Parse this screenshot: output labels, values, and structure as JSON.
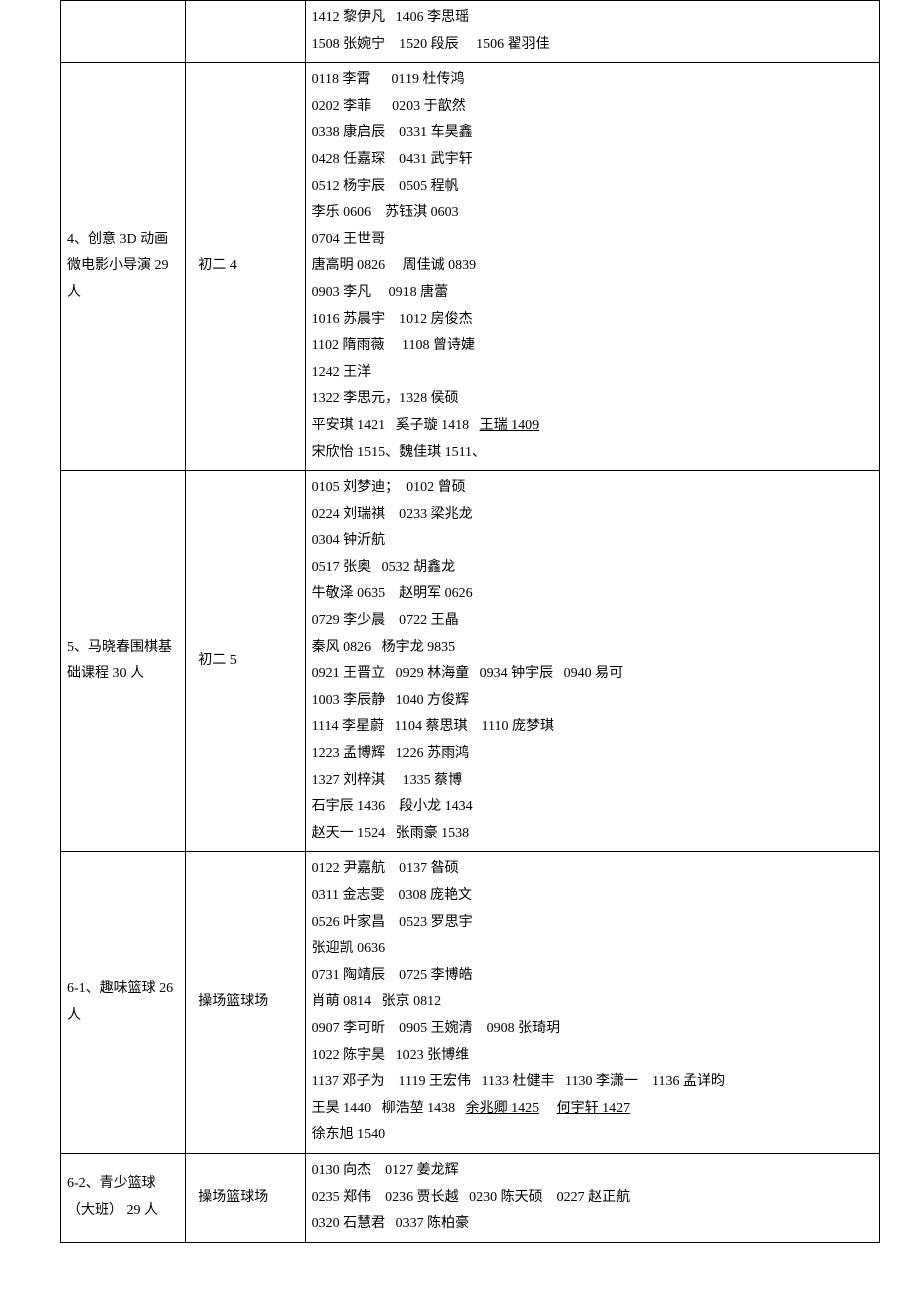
{
  "rows": [
    {
      "col1": "",
      "col2": "",
      "col3_lines": [
        {
          "segs": [
            {
              "t": "1412 黎伊凡   1406 李思瑶"
            }
          ]
        },
        {
          "segs": [
            {
              "t": "1508 张婉宁    1520 段辰     1506 翟羽佳"
            }
          ]
        }
      ]
    },
    {
      "col1": "4、创意 3D 动画微电影小导演   29 人",
      "col2": "初二 4",
      "col3_lines": [
        {
          "segs": [
            {
              "t": "0118 李霄      0119 杜传鸿"
            }
          ]
        },
        {
          "segs": [
            {
              "t": "0202 李菲      0203 于歆然"
            }
          ]
        },
        {
          "segs": [
            {
              "t": "0338 康启辰    0331 车昊鑫"
            }
          ]
        },
        {
          "segs": [
            {
              "t": "0428 任嘉琛    0431 武宇轩"
            }
          ]
        },
        {
          "segs": [
            {
              "t": "0512 杨宇辰    0505 程帆"
            }
          ]
        },
        {
          "segs": [
            {
              "t": "李乐 0606    苏钰淇 0603"
            }
          ]
        },
        {
          "segs": [
            {
              "t": "0704 王世哥"
            }
          ]
        },
        {
          "segs": [
            {
              "t": "唐高明 0826     周佳诚 0839"
            }
          ]
        },
        {
          "segs": [
            {
              "t": "0903 李凡     0918 唐蕾"
            }
          ]
        },
        {
          "segs": [
            {
              "t": "1016 苏晨宇    1012 房俊杰"
            }
          ]
        },
        {
          "segs": [
            {
              "t": "1102 隋雨薇     1108 曾诗婕"
            }
          ]
        },
        {
          "segs": [
            {
              "t": "1242 王洋"
            }
          ]
        },
        {
          "segs": [
            {
              "t": "1322 李思元，1328 侯硕"
            }
          ]
        },
        {
          "segs": [
            {
              "t": "平安琪 1421   奚子璇 1418   "
            },
            {
              "t": "王瑞 1409",
              "u": true
            }
          ]
        },
        {
          "segs": [
            {
              "t": "宋欣怡 1515、魏佳琪 1511、"
            }
          ]
        }
      ]
    },
    {
      "col1": "5、马晓春围棋基础课程    30 人",
      "col2": "初二 5",
      "col3_lines": [
        {
          "segs": [
            {
              "t": "0105 刘梦迪；  0102 曾硕"
            }
          ]
        },
        {
          "segs": [
            {
              "t": "0224 刘瑞祺    0233 梁兆龙"
            }
          ]
        },
        {
          "segs": [
            {
              "t": "0304 钟沂航"
            }
          ]
        },
        {
          "segs": [
            {
              "t": "0517 张奥   0532 胡鑫龙"
            }
          ]
        },
        {
          "segs": [
            {
              "t": "牛敬泽 0635    赵明军 0626"
            }
          ]
        },
        {
          "segs": [
            {
              "t": "0729 李少晨    0722 王晶"
            }
          ]
        },
        {
          "segs": [
            {
              "t": "秦风 0826   杨宇龙 9835"
            }
          ]
        },
        {
          "segs": [
            {
              "t": "0921 王晋立   0929 林海童   0934 钟宇辰   0940 易可"
            }
          ]
        },
        {
          "segs": [
            {
              "t": "1003 李辰静   1040 方俊辉"
            }
          ]
        },
        {
          "segs": [
            {
              "t": "1114 李星蔚   1104 蔡思琪    1110 庞梦琪"
            }
          ]
        },
        {
          "segs": [
            {
              "t": "1223 孟博辉   1226 苏雨鸿"
            }
          ]
        },
        {
          "segs": [
            {
              "t": "1327 刘梓淇     1335 蔡博"
            }
          ]
        },
        {
          "segs": [
            {
              "t": "石宇辰 1436    段小龙 1434"
            }
          ]
        },
        {
          "segs": [
            {
              "t": "赵天一 1524   张雨豪 1538"
            }
          ]
        }
      ]
    },
    {
      "col1": "6-1、趣味篮球 26 人",
      "col2": "操场篮球场",
      "col3_lines": [
        {
          "segs": [
            {
              "t": "0122 尹嘉航    0137 昝硕"
            }
          ]
        },
        {
          "segs": [
            {
              "t": "0311 金志雯    0308 庞艳文"
            }
          ]
        },
        {
          "segs": [
            {
              "t": "0526 叶家昌    0523 罗思宇"
            }
          ]
        },
        {
          "segs": [
            {
              "t": "张迎凯 0636"
            }
          ]
        },
        {
          "segs": [
            {
              "t": "0731 陶靖辰    0725 李博皓"
            }
          ]
        },
        {
          "segs": [
            {
              "t": "肖萌 0814   张京 0812"
            }
          ]
        },
        {
          "segs": [
            {
              "t": "0907 李可昕    0905 王婉清    0908 张琦玥"
            }
          ]
        },
        {
          "segs": [
            {
              "t": "1022 陈宇昊   1023 张博维"
            }
          ]
        },
        {
          "segs": [
            {
              "t": "1137 邓子为    1119 王宏伟   1133 杜健丰   1130 李潇一    1136 孟详昀"
            }
          ]
        },
        {
          "segs": [
            {
              "t": "王昊 1440   柳浩堃 1438   "
            },
            {
              "t": "余兆卿 1425",
              "u": true
            },
            {
              "t": "     "
            },
            {
              "t": "何宇轩 1427",
              "u": true
            }
          ]
        },
        {
          "segs": [
            {
              "t": "徐东旭 1540"
            }
          ]
        }
      ]
    },
    {
      "col1": "6-2、青少篮球（大班）       29 人",
      "col2": "操场篮球场",
      "col3_lines": [
        {
          "segs": [
            {
              "t": "0130 向杰    0127 姜龙辉"
            }
          ]
        },
        {
          "segs": [
            {
              "t": "0235 郑伟    0236 贾长越   0230 陈天硕    0227 赵正航"
            }
          ]
        },
        {
          "segs": [
            {
              "t": "0320 石慧君   0337 陈柏豪"
            }
          ]
        }
      ]
    }
  ]
}
